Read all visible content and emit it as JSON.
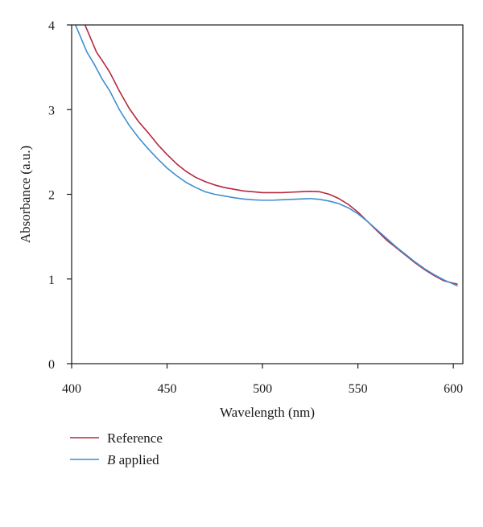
{
  "chart_data": {
    "type": "line",
    "xlabel": "Wavelength (nm)",
    "ylabel": "Absorbance (a.u.)",
    "xlim": [
      400,
      605
    ],
    "ylim": [
      0,
      4
    ],
    "xticks": [
      400,
      450,
      500,
      550,
      600
    ],
    "yticks": [
      0,
      1,
      2,
      3,
      4
    ],
    "grid": false,
    "legend_position": "bottom-left, below plot",
    "series": [
      {
        "name": "Reference",
        "color": "#b5293f",
        "x": [
          407,
          410,
          413,
          416,
          420,
          425,
          430,
          435,
          440,
          445,
          450,
          455,
          460,
          465,
          470,
          475,
          480,
          485,
          490,
          495,
          500,
          505,
          510,
          515,
          520,
          525,
          530,
          535,
          540,
          545,
          550,
          555,
          560,
          565,
          570,
          575,
          580,
          585,
          590,
          595,
          600,
          602
        ],
        "values": [
          4.0,
          3.84,
          3.68,
          3.58,
          3.44,
          3.22,
          3.02,
          2.86,
          2.73,
          2.59,
          2.47,
          2.36,
          2.27,
          2.2,
          2.15,
          2.11,
          2.08,
          2.06,
          2.04,
          2.03,
          2.02,
          2.02,
          2.02,
          2.025,
          2.03,
          2.035,
          2.03,
          2.0,
          1.95,
          1.88,
          1.79,
          1.68,
          1.57,
          1.46,
          1.37,
          1.28,
          1.19,
          1.11,
          1.04,
          0.98,
          0.95,
          0.94
        ]
      },
      {
        "name": "B applied",
        "color": "#3f8fd2",
        "x": [
          402,
          405,
          408,
          412,
          416,
          420,
          425,
          430,
          435,
          440,
          445,
          450,
          455,
          460,
          465,
          470,
          475,
          480,
          485,
          490,
          495,
          500,
          505,
          510,
          515,
          520,
          525,
          530,
          535,
          540,
          545,
          550,
          555,
          560,
          565,
          570,
          575,
          580,
          585,
          590,
          595,
          600,
          602
        ],
        "values": [
          4.0,
          3.84,
          3.68,
          3.53,
          3.36,
          3.22,
          3.0,
          2.82,
          2.67,
          2.54,
          2.42,
          2.31,
          2.22,
          2.14,
          2.08,
          2.03,
          2.0,
          1.98,
          1.96,
          1.945,
          1.935,
          1.93,
          1.93,
          1.935,
          1.94,
          1.945,
          1.95,
          1.94,
          1.92,
          1.89,
          1.84,
          1.77,
          1.68,
          1.58,
          1.48,
          1.38,
          1.29,
          1.2,
          1.12,
          1.05,
          0.99,
          0.94,
          0.92
        ]
      }
    ]
  },
  "legend": {
    "items": [
      {
        "prefix": "",
        "label": "Reference",
        "color": "#b5293f"
      },
      {
        "prefix": "B",
        "label": " applied",
        "color": "#3f8fd2"
      }
    ]
  }
}
